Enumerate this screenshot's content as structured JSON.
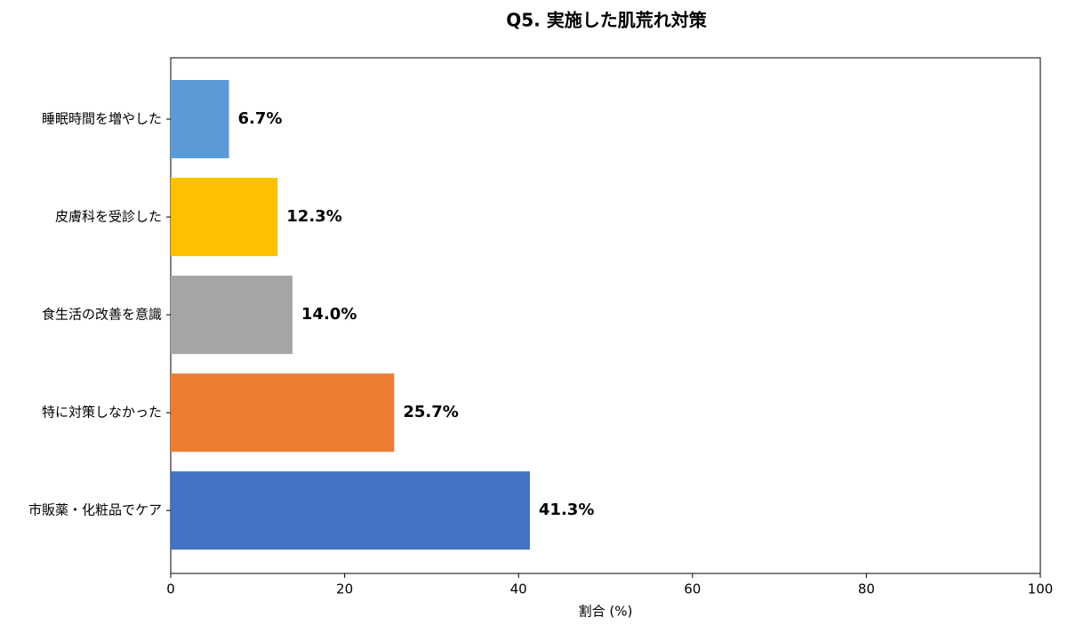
{
  "chart_data": {
    "type": "barh",
    "title": "Q5. 実施した肌荒れ対策",
    "x_label": "割合 (%)",
    "categories": [
      "睡眠時間を増やした",
      "皮膚科を受診した",
      "食生活の改善を意識",
      "特に対策しなかった",
      "市販薬・化粧品でケア"
    ],
    "values": [
      6.7,
      12.3,
      14.0,
      25.7,
      41.3
    ],
    "value_labels": [
      "6.7%",
      "12.3%",
      "14.0%",
      "25.7%",
      "41.3%"
    ],
    "colors": [
      "#5b9bd5",
      "#ffc000",
      "#a5a5a5",
      "#ed7d31",
      "#4472c4"
    ],
    "xlim": [
      0,
      100
    ],
    "xticks": [
      0,
      20,
      40,
      60,
      80,
      100
    ],
    "grid": false
  }
}
